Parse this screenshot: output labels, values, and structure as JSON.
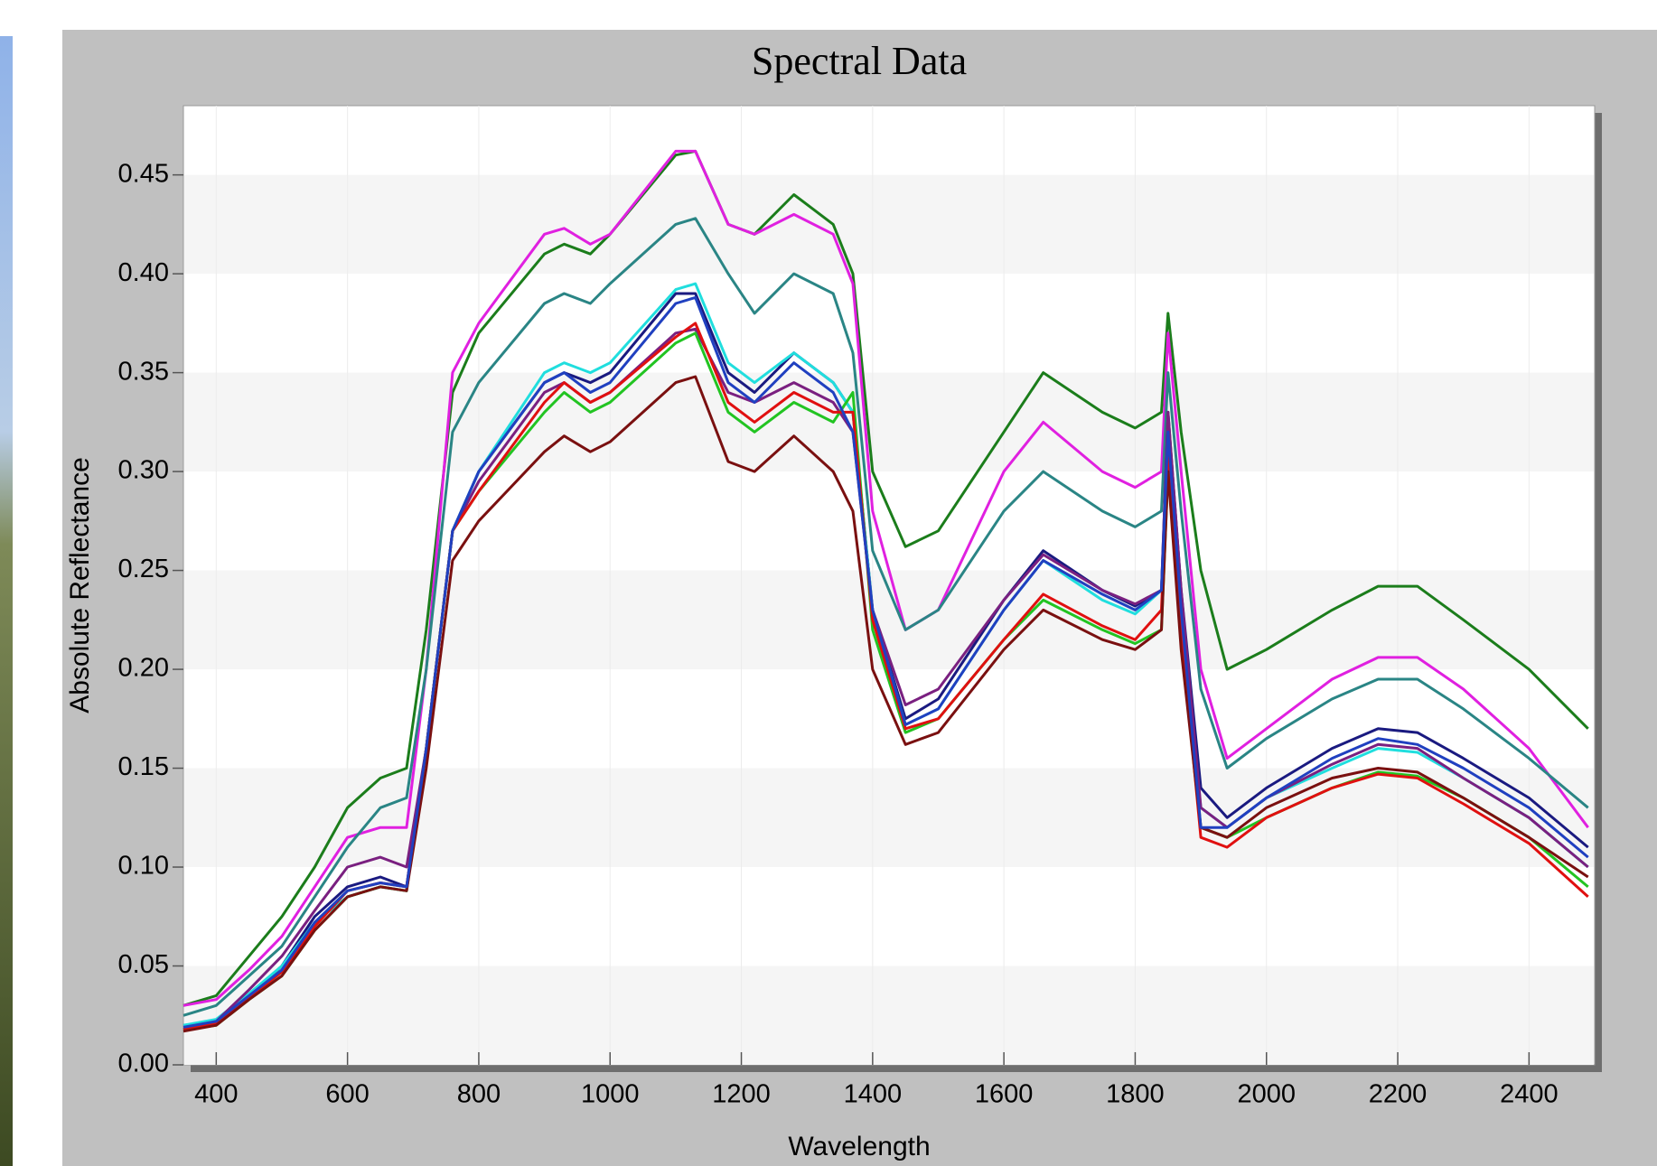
{
  "chart_data": {
    "type": "line",
    "title": "Spectral Data",
    "x_label": "Wavelength",
    "y_label": "Absolute Reflectance",
    "x": [
      350,
      400,
      450,
      500,
      550,
      600,
      650,
      690,
      720,
      760,
      800,
      900,
      930,
      970,
      1000,
      1100,
      1130,
      1180,
      1220,
      1280,
      1340,
      1370,
      1400,
      1450,
      1500,
      1600,
      1660,
      1750,
      1800,
      1840,
      1850,
      1870,
      1900,
      1940,
      2000,
      2100,
      2170,
      2230,
      2300,
      2400,
      2490
    ],
    "series": [
      {
        "color": "#1b7d1b",
        "values": [
          0.03,
          0.035,
          0.055,
          0.075,
          0.1,
          0.13,
          0.145,
          0.15,
          0.22,
          0.34,
          0.37,
          0.41,
          0.415,
          0.41,
          0.42,
          0.46,
          0.462,
          0.425,
          0.42,
          0.44,
          0.425,
          0.4,
          0.3,
          0.262,
          0.27,
          0.32,
          0.35,
          0.33,
          0.322,
          0.33,
          0.38,
          0.32,
          0.25,
          0.2,
          0.21,
          0.23,
          0.242,
          0.242,
          0.225,
          0.2,
          0.17
        ]
      },
      {
        "color": "#e020e0",
        "values": [
          0.03,
          0.033,
          0.048,
          0.065,
          0.09,
          0.115,
          0.12,
          0.12,
          0.2,
          0.35,
          0.375,
          0.42,
          0.423,
          0.415,
          0.42,
          0.462,
          0.462,
          0.425,
          0.42,
          0.43,
          0.42,
          0.395,
          0.28,
          0.22,
          0.23,
          0.3,
          0.325,
          0.3,
          0.292,
          0.3,
          0.37,
          0.3,
          0.2,
          0.155,
          0.17,
          0.195,
          0.206,
          0.206,
          0.19,
          0.16,
          0.12
        ]
      },
      {
        "color": "#2a8585",
        "values": [
          0.025,
          0.03,
          0.045,
          0.06,
          0.085,
          0.11,
          0.13,
          0.135,
          0.2,
          0.32,
          0.345,
          0.385,
          0.39,
          0.385,
          0.395,
          0.425,
          0.428,
          0.4,
          0.38,
          0.4,
          0.39,
          0.36,
          0.26,
          0.22,
          0.23,
          0.28,
          0.3,
          0.28,
          0.272,
          0.28,
          0.35,
          0.28,
          0.19,
          0.15,
          0.165,
          0.185,
          0.195,
          0.195,
          0.18,
          0.155,
          0.13
        ]
      },
      {
        "color": "#1a1a80",
        "values": [
          0.02,
          0.022,
          0.035,
          0.05,
          0.075,
          0.09,
          0.095,
          0.09,
          0.16,
          0.27,
          0.3,
          0.345,
          0.35,
          0.345,
          0.35,
          0.39,
          0.39,
          0.35,
          0.34,
          0.36,
          0.345,
          0.33,
          0.23,
          0.175,
          0.185,
          0.235,
          0.26,
          0.24,
          0.232,
          0.24,
          0.33,
          0.24,
          0.14,
          0.125,
          0.14,
          0.16,
          0.17,
          0.168,
          0.155,
          0.135,
          0.11
        ]
      },
      {
        "color": "#20dede",
        "values": [
          0.02,
          0.023,
          0.036,
          0.05,
          0.072,
          0.085,
          0.09,
          0.088,
          0.16,
          0.27,
          0.3,
          0.35,
          0.355,
          0.35,
          0.355,
          0.392,
          0.395,
          0.355,
          0.345,
          0.36,
          0.345,
          0.33,
          0.23,
          0.172,
          0.18,
          0.23,
          0.255,
          0.235,
          0.228,
          0.24,
          0.32,
          0.23,
          0.13,
          0.12,
          0.135,
          0.15,
          0.16,
          0.158,
          0.145,
          0.125,
          0.1
        ]
      },
      {
        "color": "#7a2080",
        "values": [
          0.018,
          0.022,
          0.038,
          0.055,
          0.078,
          0.1,
          0.105,
          0.1,
          0.16,
          0.27,
          0.295,
          0.34,
          0.345,
          0.335,
          0.34,
          0.37,
          0.372,
          0.34,
          0.335,
          0.345,
          0.335,
          0.32,
          0.23,
          0.182,
          0.19,
          0.235,
          0.258,
          0.24,
          0.233,
          0.24,
          0.33,
          0.24,
          0.13,
          0.12,
          0.135,
          0.152,
          0.162,
          0.16,
          0.145,
          0.125,
          0.1
        ]
      },
      {
        "color": "#22c422",
        "values": [
          0.018,
          0.02,
          0.033,
          0.045,
          0.068,
          0.085,
          0.09,
          0.088,
          0.16,
          0.27,
          0.29,
          0.33,
          0.34,
          0.33,
          0.335,
          0.365,
          0.37,
          0.33,
          0.32,
          0.335,
          0.325,
          0.34,
          0.22,
          0.168,
          0.175,
          0.215,
          0.235,
          0.22,
          0.213,
          0.22,
          0.3,
          0.22,
          0.12,
          0.115,
          0.125,
          0.14,
          0.148,
          0.146,
          0.135,
          0.115,
          0.09
        ]
      },
      {
        "color": "#e01010",
        "values": [
          0.018,
          0.021,
          0.034,
          0.047,
          0.07,
          0.088,
          0.092,
          0.09,
          0.16,
          0.27,
          0.29,
          0.335,
          0.345,
          0.335,
          0.34,
          0.368,
          0.375,
          0.335,
          0.325,
          0.34,
          0.33,
          0.33,
          0.225,
          0.17,
          0.175,
          0.215,
          0.238,
          0.222,
          0.215,
          0.23,
          0.31,
          0.22,
          0.115,
          0.11,
          0.125,
          0.14,
          0.147,
          0.145,
          0.132,
          0.112,
          0.085
        ]
      },
      {
        "color": "#7a1010",
        "values": [
          0.017,
          0.02,
          0.033,
          0.045,
          0.068,
          0.085,
          0.09,
          0.088,
          0.15,
          0.255,
          0.275,
          0.31,
          0.318,
          0.31,
          0.315,
          0.345,
          0.348,
          0.305,
          0.3,
          0.318,
          0.3,
          0.28,
          0.2,
          0.162,
          0.168,
          0.21,
          0.23,
          0.215,
          0.21,
          0.22,
          0.3,
          0.21,
          0.12,
          0.115,
          0.13,
          0.145,
          0.15,
          0.148,
          0.135,
          0.115,
          0.095
        ]
      },
      {
        "color": "#2040c0",
        "values": [
          0.019,
          0.022,
          0.035,
          0.048,
          0.072,
          0.088,
          0.092,
          0.09,
          0.16,
          0.27,
          0.3,
          0.345,
          0.35,
          0.34,
          0.345,
          0.385,
          0.388,
          0.345,
          0.335,
          0.355,
          0.34,
          0.32,
          0.23,
          0.172,
          0.18,
          0.23,
          0.255,
          0.238,
          0.23,
          0.24,
          0.32,
          0.23,
          0.12,
          0.12,
          0.135,
          0.155,
          0.165,
          0.162,
          0.15,
          0.13,
          0.105
        ]
      }
    ],
    "xlim": [
      350,
      2500
    ],
    "ylim": [
      0,
      0.485
    ],
    "xticks": [
      400,
      600,
      800,
      1000,
      1200,
      1400,
      1600,
      1800,
      2000,
      2200,
      2400
    ],
    "yticks": [
      {
        "value": 0,
        "label": "0.00"
      },
      0.05,
      {
        "value": 0.1,
        "label": "0.10"
      },
      0.15,
      {
        "value": 0.2,
        "label": "0.20"
      },
      0.25,
      {
        "value": 0.3,
        "label": "0.30"
      },
      0.35,
      {
        "value": 0.4,
        "label": "0.40"
      },
      0.45
    ],
    "grid": true,
    "banded": true
  }
}
